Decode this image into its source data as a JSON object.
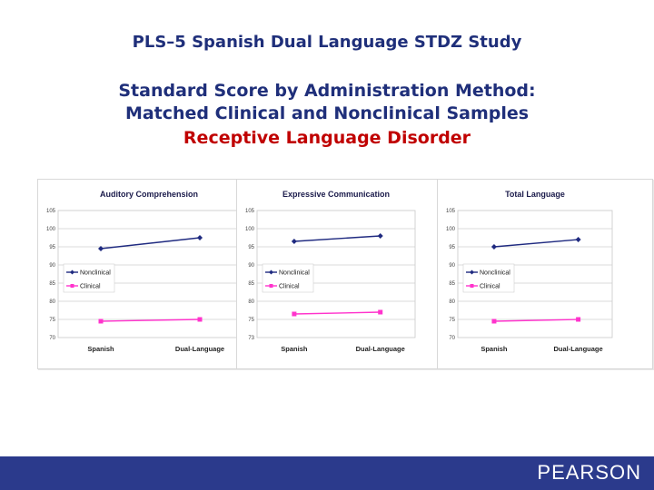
{
  "slide": {
    "title": "PLS–5 Spanish Dual Language STDZ Study",
    "subtitle_line1": "Standard Score by Administration Method:",
    "subtitle_line2": "Matched Clinical and Nonclinical Samples",
    "subtitle_line3": "Receptive Language Disorder"
  },
  "footer": {
    "logo_text": "PEARSON"
  },
  "colors": {
    "nonclinical": "#1f2a80",
    "clinical": "#ff33cc",
    "footer": "#2b3a8c"
  },
  "chart_data": [
    {
      "type": "line",
      "title": "Auditory Comprehension",
      "categories": [
        "Spanish",
        "Dual-Language"
      ],
      "ylim": [
        70,
        105
      ],
      "yticks": [
        "70",
        "75",
        "80",
        "85",
        "90",
        "95",
        "100",
        "105"
      ],
      "legend": "left",
      "series": [
        {
          "name": "Nonclinical",
          "values": [
            94.5,
            97.5
          ],
          "color": "#1f2a80",
          "marker": "diamond"
        },
        {
          "name": "Clinical",
          "values": [
            74.5,
            75
          ],
          "color": "#ff33cc",
          "marker": "square"
        }
      ]
    },
    {
      "type": "line",
      "title": "Expressive Communication",
      "categories": [
        "Spanish",
        "Dual-Language"
      ],
      "ylim": [
        73,
        105
      ],
      "yticks": [
        "73",
        "75",
        "80",
        "85",
        "90",
        "95",
        "100",
        "105"
      ],
      "legend": "left",
      "series": [
        {
          "name": "Nonclinical",
          "values": [
            96.5,
            98
          ],
          "color": "#1f2a80",
          "marker": "diamond"
        },
        {
          "name": "Clinical",
          "values": [
            76.5,
            77
          ],
          "color": "#ff33cc",
          "marker": "square"
        }
      ]
    },
    {
      "type": "line",
      "title": "Total Language",
      "categories": [
        "Spanish",
        "Dual-Language"
      ],
      "ylim": [
        70,
        105
      ],
      "yticks": [
        "70",
        "75",
        "80",
        "85",
        "90",
        "95",
        "100",
        "105"
      ],
      "legend": "left",
      "series": [
        {
          "name": "Nonclinical",
          "values": [
            95,
            97
          ],
          "color": "#1f2a80",
          "marker": "diamond"
        },
        {
          "name": "Clinical",
          "values": [
            74.5,
            75
          ],
          "color": "#ff33cc",
          "marker": "square"
        }
      ]
    }
  ]
}
